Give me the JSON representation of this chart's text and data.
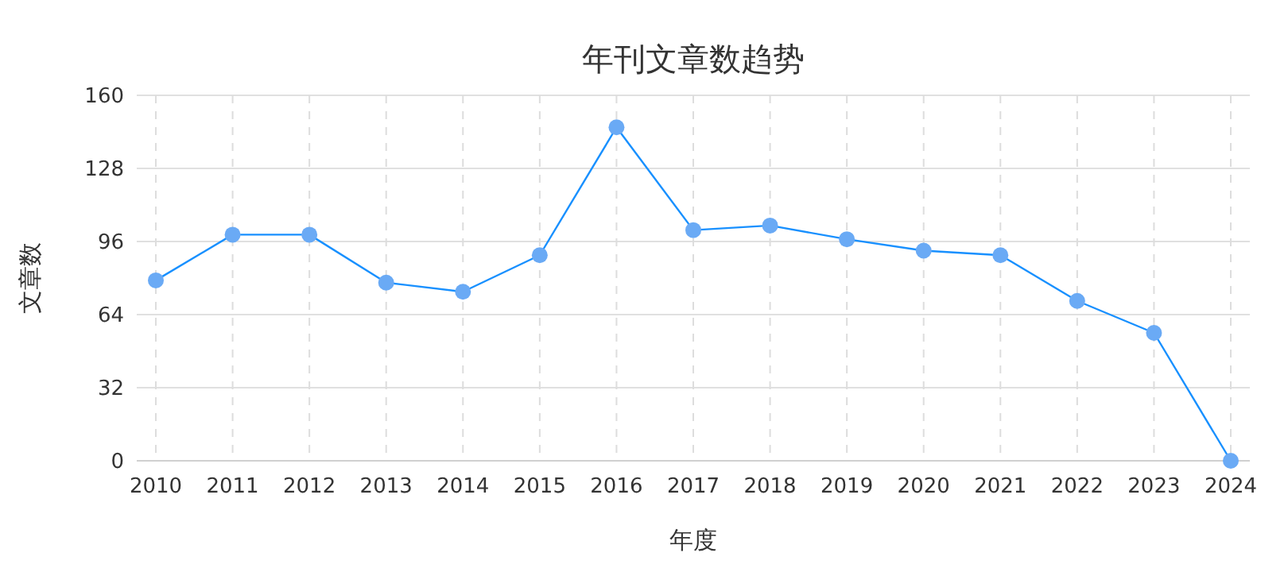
{
  "chart_data": {
    "type": "line",
    "title": "年刊文章数趋势",
    "xlabel": "年度",
    "ylabel": "文章数",
    "categories": [
      "2010",
      "2011",
      "2012",
      "2013",
      "2014",
      "2015",
      "2016",
      "2017",
      "2018",
      "2019",
      "2020",
      "2021",
      "2022",
      "2023",
      "2024"
    ],
    "series": [
      {
        "color": "#1890ff",
        "values": [
          79,
          99,
          99,
          78,
          74,
          90,
          146,
          101,
          103,
          97,
          92,
          90,
          70,
          56,
          0
        ]
      }
    ],
    "ylim": [
      0,
      160
    ],
    "yticks": [
      0,
      32,
      64,
      96,
      128,
      160
    ],
    "grid": true,
    "marker": "circle",
    "line_style": "solid"
  }
}
